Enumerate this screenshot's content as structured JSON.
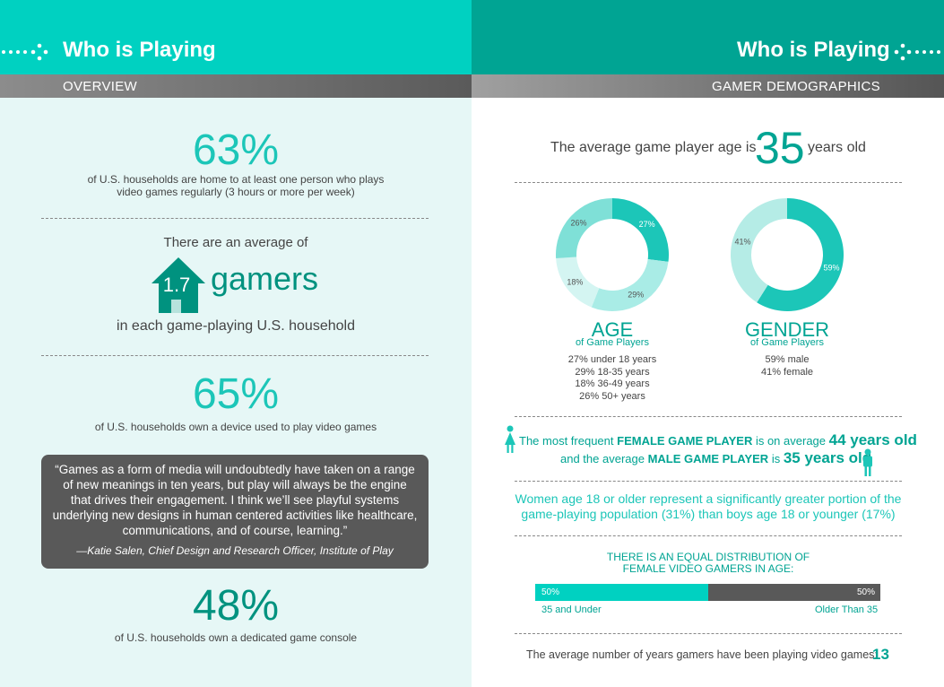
{
  "left": {
    "title": "Who is Playing",
    "subheader": "OVERVIEW",
    "stat1": {
      "value": "63%",
      "line1": "of U.S. households are home to at least one person who plays",
      "line2": "video games regularly (3 hours or more per week)"
    },
    "stat2": {
      "intro": "There are an average of",
      "number": "1.7",
      "word": "gamers",
      "outro": "in each game-playing U.S. household"
    },
    "stat3": {
      "value": "65%",
      "text": "of U.S. households own a device used to play video games"
    },
    "quote": {
      "lines": [
        "“Games as a form of media will undoubtedly have taken on a range",
        "of new meanings in ten years, but play will always be the engine",
        "that drives their engagement. I think we’ll see playful systems",
        "underlying new designs in human centered activities like healthcare,",
        "communications, and of course, learning.”"
      ],
      "attribution": "—Katie Salen, Chief Design and Research Officer, Institute of Play"
    },
    "stat4": {
      "value": "48%",
      "text": "of U.S. households own a dedicated game console"
    }
  },
  "right": {
    "title": "Who is Playing",
    "subheader": "GAMER DEMOGRAPHICS",
    "avg_age": {
      "prefix": "The average game player age is",
      "number": "35",
      "suffix": "years old"
    },
    "age": {
      "title": "AGE",
      "subtitle": "of Game Players",
      "legend": [
        "27% under 18 years",
        "29% 18-35 years",
        "18% 36-49 years",
        "26% 50+ years"
      ],
      "slice_labels": [
        "27%",
        "29%",
        "18%",
        "26%"
      ]
    },
    "gender": {
      "title": "GENDER",
      "subtitle": "of Game Players",
      "legend": [
        "59% male",
        "41% female"
      ],
      "slice_labels": [
        "59%",
        "41%"
      ]
    },
    "frequent": {
      "l1_a": "The most frequent",
      "l1_b": "FEMALE GAME PLAYER",
      "l1_c": "is on average",
      "l1_d": "44 years old",
      "l2_a": "and the average",
      "l2_b": "MALE GAME PLAYER",
      "l2_c": "is",
      "l2_d": "35 years old"
    },
    "women": {
      "line1": "Women age 18 or older represent a significantly greater portion of the",
      "line2": "game-playing population (31%) than boys age 18 or younger (17%)"
    },
    "equal": {
      "line1": "THERE IS AN EQUAL DISTRIBUTION OF",
      "line2": "FEMALE VIDEO GAMERS IN AGE:",
      "left_pct": "50%",
      "right_pct": "50%",
      "left_label": "35 and Under",
      "right_label": "Older Than 35",
      "left_share": 50
    },
    "years": {
      "text": "The average number of years gamers have been playing video games:",
      "number": "13"
    }
  },
  "colors": {
    "teal_light": "#00d1c1",
    "teal_dark": "#00a493",
    "teal_text": "#1cc6b8",
    "gray_box": "#595959"
  },
  "chart_data": [
    {
      "type": "pie",
      "title": "AGE",
      "subtitle": "of Game Players",
      "categories": [
        "under 18 years",
        "18-35 years",
        "36-49 years",
        "50+ years"
      ],
      "values": [
        27,
        29,
        18,
        26
      ]
    },
    {
      "type": "pie",
      "title": "GENDER",
      "subtitle": "of Game Players",
      "categories": [
        "male",
        "female"
      ],
      "values": [
        59,
        41
      ]
    },
    {
      "type": "bar",
      "categories": [
        "35 and Under",
        "Older Than 35"
      ],
      "values": [
        50,
        50
      ]
    }
  ]
}
